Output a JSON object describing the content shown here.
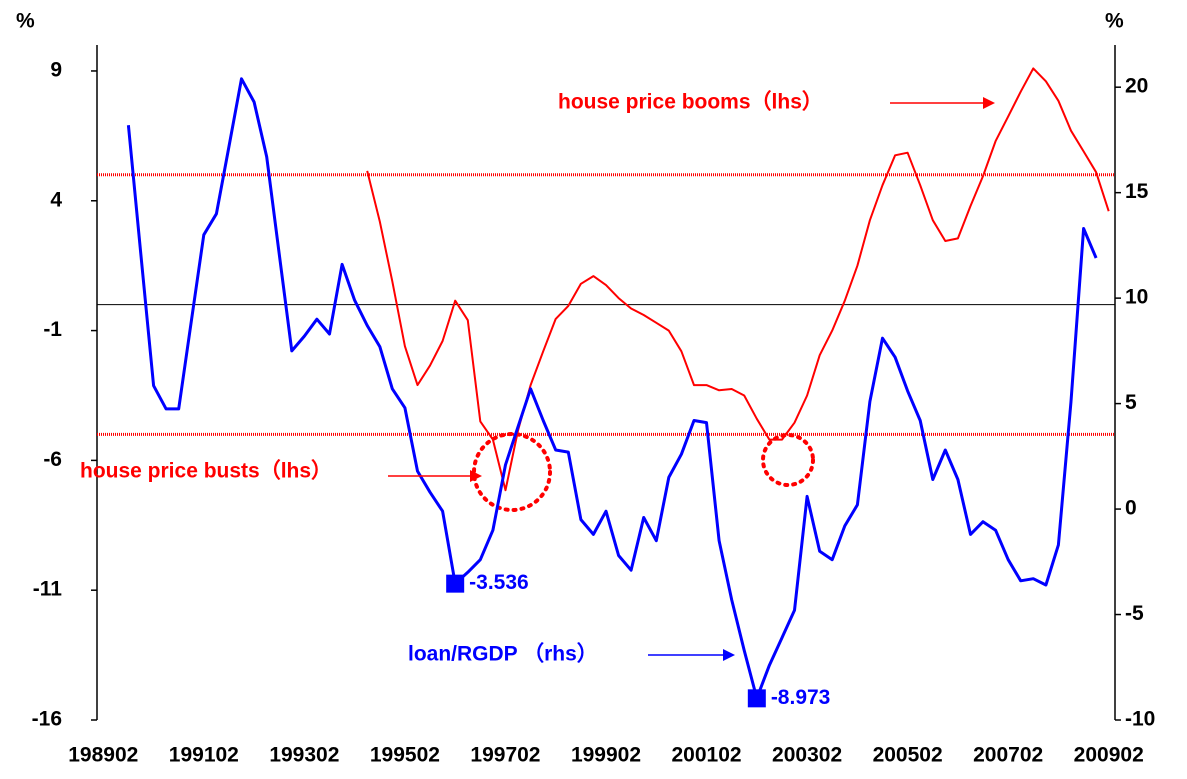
{
  "chart_data": {
    "type": "line",
    "y_unit": "%",
    "y2_unit": "%",
    "categories": [
      "198902",
      null,
      null,
      null,
      null,
      null,
      null,
      null,
      "199102",
      null,
      null,
      null,
      null,
      null,
      null,
      null,
      "199302",
      null,
      null,
      null,
      null,
      null,
      null,
      null,
      "199502",
      null,
      null,
      null,
      null,
      null,
      null,
      null,
      "199702",
      null,
      null,
      null,
      null,
      null,
      null,
      null,
      "199902",
      null,
      null,
      null,
      null,
      null,
      null,
      null,
      "200102",
      null,
      null,
      null,
      null,
      null,
      null,
      null,
      "200302",
      null,
      null,
      null,
      null,
      null,
      null,
      null,
      "200502",
      null,
      null,
      null,
      null,
      null,
      null,
      null,
      "200702",
      null,
      null,
      null,
      null,
      null,
      null,
      null,
      "200902"
    ],
    "ylim": [
      -16,
      10
    ],
    "yticks": [
      -16,
      -11,
      -6,
      -1,
      4,
      9
    ],
    "y2lim": [
      -10,
      22
    ],
    "y2ticks": [
      -10,
      -5,
      0,
      5,
      10,
      15,
      20
    ],
    "reference_lines": [
      {
        "value": 5,
        "color": "#ff0000"
      },
      {
        "value": -5,
        "color": "#ff0000"
      },
      {
        "value": 0,
        "color": "#000000"
      }
    ],
    "series": [
      {
        "color": "#ff0000",
        "axis": "y",
        "values": [
          null,
          null,
          null,
          null,
          null,
          null,
          null,
          null,
          null,
          null,
          null,
          null,
          null,
          null,
          null,
          null,
          null,
          null,
          null,
          null,
          null,
          5.15,
          3.2,
          0.9,
          -1.6,
          -3.1,
          -2.35,
          -1.4,
          0.15,
          -0.6,
          -4.5,
          -5.2,
          -7.15,
          -4.85,
          -3.1,
          -1.8,
          -0.55,
          -0.05,
          0.8,
          1.1,
          0.75,
          0.25,
          -0.15,
          -0.4,
          -0.7,
          -1.0,
          -1.8,
          -3.1,
          -3.1,
          -3.3,
          -3.25,
          -3.5,
          -4.4,
          -5.2,
          -5.2,
          -4.55,
          -3.5,
          -1.95,
          -1.0,
          0.15,
          1.5,
          3.25,
          4.6,
          5.75,
          5.85,
          4.6,
          3.25,
          2.45,
          2.55,
          3.8,
          4.95,
          6.3,
          7.25,
          8.2,
          9.1,
          8.6,
          7.85,
          6.7,
          5.9,
          5.1,
          3.6
        ]
      },
      {
        "color": "#0000ff",
        "axis": "y2",
        "values": [
          null,
          null,
          18.2,
          12.0,
          5.85,
          4.75,
          4.75,
          8.9,
          13.0,
          14.0,
          17.2,
          20.4,
          19.3,
          16.7,
          12.1,
          7.5,
          8.2,
          9.0,
          8.3,
          11.6,
          9.9,
          8.7,
          7.7,
          5.7,
          4.8,
          1.8,
          0.8,
          -0.1,
          -3.536,
          -3.0,
          -2.4,
          -1.0,
          2.1,
          3.9,
          5.7,
          4.2,
          2.8,
          2.7,
          -0.5,
          -1.2,
          -0.1,
          -2.2,
          -2.9,
          -0.4,
          -1.5,
          1.5,
          2.6,
          4.2,
          4.1,
          -1.5,
          -4.3,
          -6.7,
          -8.973,
          -7.4,
          -6.1,
          -4.8,
          0.6,
          -2.0,
          -2.4,
          -0.8,
          0.2,
          5.1,
          8.1,
          7.2,
          5.6,
          4.2,
          1.4,
          2.8,
          1.4,
          -1.2,
          -0.6,
          -1.0,
          -2.4,
          -3.4,
          -3.3,
          -3.6,
          -1.7,
          5.1,
          13.3,
          11.9,
          null
        ],
        "value_labels": [
          null,
          null,
          null,
          null,
          null,
          null,
          null,
          null,
          null,
          null,
          null,
          null,
          null,
          null,
          null,
          null,
          null,
          null,
          null,
          null,
          null,
          null,
          null,
          null,
          null,
          null,
          null,
          null,
          "-3.536",
          null,
          null,
          null,
          null,
          null,
          null,
          null,
          null,
          null,
          null,
          null,
          null,
          null,
          null,
          null,
          null,
          null,
          null,
          null,
          null,
          null,
          null,
          null,
          "-8.973",
          null,
          null,
          null,
          null,
          null,
          null,
          null,
          null,
          null,
          null,
          null,
          null,
          null,
          null,
          null,
          null,
          null,
          null,
          null,
          null,
          null,
          null,
          null,
          null,
          null,
          null,
          null,
          null
        ]
      }
    ],
    "annotations": [
      {
        "text": "house price booms（lhs）",
        "color": "#ff0000"
      },
      {
        "text": "house price busts（lhs）",
        "color": "#ff0000"
      },
      {
        "text": "loan/RGDP （rhs）",
        "color": "#0000ff"
      }
    ]
  }
}
